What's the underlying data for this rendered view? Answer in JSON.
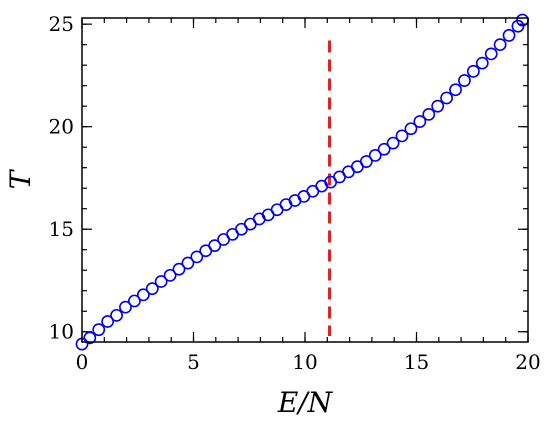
{
  "chart_data": {
    "type": "scatter",
    "title": "",
    "xlabel": "E/N",
    "ylabel": "T",
    "xlim": [
      0,
      20
    ],
    "ylim": [
      9.5,
      25.3
    ],
    "xticks": [
      0,
      5,
      10,
      15,
      20
    ],
    "yticks": [
      10,
      15,
      20,
      25
    ],
    "x_minor_step": 1,
    "y_minor_step": 1,
    "grid": false,
    "marker": "open-circle",
    "marker_color": "#0000ee",
    "series": [
      {
        "x": [
          0.0,
          0.35,
          0.75,
          1.15,
          1.55,
          1.95,
          2.35,
          2.75,
          3.15,
          3.55,
          3.95,
          4.35,
          4.75,
          5.15,
          5.55,
          5.95,
          6.35,
          6.75,
          7.15,
          7.55,
          7.95,
          8.35,
          8.75,
          9.15,
          9.55,
          9.95,
          10.35,
          10.75,
          11.15,
          11.55,
          11.95,
          12.35,
          12.75,
          13.15,
          13.55,
          13.95,
          14.35,
          14.75,
          15.15,
          15.55,
          15.95,
          16.35,
          16.75,
          17.15,
          17.55,
          17.95,
          18.35,
          18.75,
          19.15,
          19.55,
          19.75
        ],
        "y": [
          9.4,
          9.7,
          10.1,
          10.5,
          10.8,
          11.2,
          11.5,
          11.8,
          12.1,
          12.45,
          12.75,
          13.05,
          13.35,
          13.65,
          13.95,
          14.2,
          14.5,
          14.75,
          15.0,
          15.25,
          15.5,
          15.7,
          15.95,
          16.2,
          16.4,
          16.6,
          16.85,
          17.1,
          17.3,
          17.55,
          17.8,
          18.05,
          18.3,
          18.6,
          18.9,
          19.2,
          19.55,
          19.9,
          20.25,
          20.6,
          21.0,
          21.4,
          21.8,
          22.25,
          22.7,
          23.1,
          23.55,
          24.0,
          24.45,
          24.9,
          25.2
        ]
      }
    ],
    "reference_line": {
      "orientation": "vertical",
      "x": 11.1,
      "color": "#e02020",
      "style": "dashed"
    }
  }
}
